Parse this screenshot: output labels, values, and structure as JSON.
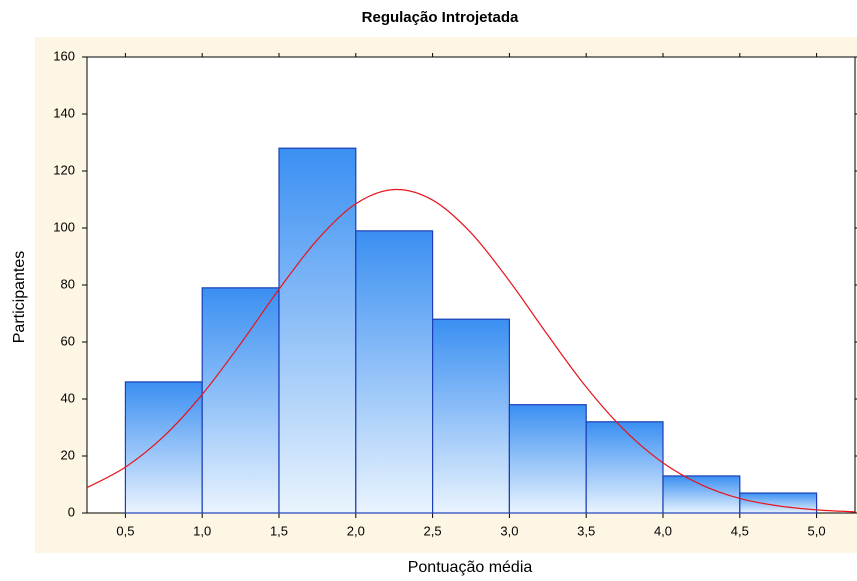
{
  "chart_data": {
    "type": "histogram",
    "title": "Regulação Introjetada",
    "x_label": "Pontuação média",
    "y_label": "Participantes",
    "bins": [
      0.5,
      1.0,
      1.5,
      2.0,
      2.5,
      3.0,
      3.5,
      4.0,
      4.5,
      5.0
    ],
    "values": [
      46,
      79,
      128,
      99,
      68,
      38,
      32,
      13,
      7
    ],
    "color": "#3a8ff2",
    "edge_color": "#1c3fb8",
    "curve": {
      "color": "#e8141e",
      "x": [
        0.25,
        0.5,
        0.75,
        1.0,
        1.25,
        1.5,
        1.75,
        2.0,
        2.25,
        2.5,
        2.75,
        3.0,
        3.25,
        3.5,
        3.75,
        4.0,
        4.25,
        4.5,
        4.75,
        5.0,
        5.25
      ],
      "values": [
        8.9,
        16.1,
        26.9,
        41.6,
        59.4,
        78.5,
        95.9,
        108.5,
        113.5,
        109.8,
        98.3,
        81.4,
        62.4,
        44.2,
        29.0,
        17.6,
        9.9,
        5.1,
        2.5,
        1.1,
        0.4
      ]
    },
    "xlim": [
      0.25,
      5.25
    ],
    "xticks": [
      {
        "value": 0.5,
        "label": "0,5"
      },
      {
        "value": 1.0,
        "label": "1,0"
      },
      {
        "value": 1.5,
        "label": "1,5"
      },
      {
        "value": 2.0,
        "label": "2,0"
      },
      {
        "value": 2.5,
        "label": "2,5"
      },
      {
        "value": 3.0,
        "label": "3,0"
      },
      {
        "value": 3.5,
        "label": "3,5"
      },
      {
        "value": 4.0,
        "label": "4,0"
      },
      {
        "value": 4.5,
        "label": "4,5"
      },
      {
        "value": 5.0,
        "label": "5,0"
      }
    ],
    "ylim": [
      0,
      160
    ],
    "yticks": [
      0,
      20,
      40,
      60,
      80,
      100,
      120,
      140,
      160
    ]
  }
}
